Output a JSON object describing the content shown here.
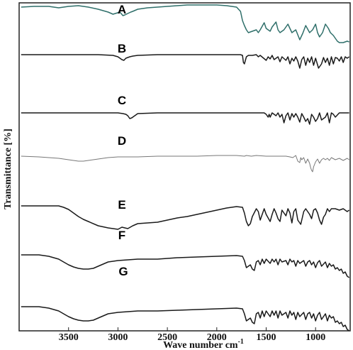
{
  "chart_data": {
    "type": "line",
    "xlabel": "Wave number cm",
    "xlabel_superscript": "-1",
    "ylabel": "Transmittance [%]",
    "x_reversed": true,
    "xlim": [
      4000,
      650
    ],
    "xticks": [
      3500,
      3000,
      2500,
      2000,
      1500,
      1000
    ],
    "yticks": [],
    "grid": false,
    "legend": "none",
    "colors": {
      "A": "#2f6f6a",
      "B": "#1a1a1a",
      "C": "#1a1a1a",
      "D": "#777777",
      "E": "#1a1a1a",
      "F": "#1a1a1a",
      "G": "#1a1a1a"
    },
    "series": [
      {
        "name": "A",
        "x": [
          3980,
          3850,
          3700,
          3600,
          3500,
          3400,
          3300,
          3200,
          3100,
          3050,
          2980,
          2950,
          2930,
          2900,
          2870,
          2850,
          2800,
          2700,
          2600,
          2500,
          2400,
          2300,
          2200,
          2100,
          2000,
          1900,
          1800,
          1760,
          1740,
          1720,
          1700,
          1680,
          1640,
          1600,
          1580,
          1560,
          1520,
          1500,
          1460,
          1440,
          1400,
          1380,
          1360,
          1320,
          1280,
          1260,
          1240,
          1200,
          1160,
          1130,
          1100,
          1060,
          1030,
          1000,
          980,
          960,
          930,
          900,
          870,
          850,
          820,
          800,
          780,
          760,
          720,
          680,
          660
        ],
        "y": [
          94,
          95,
          95,
          93,
          95,
          96,
          94,
          91,
          87,
          84,
          87,
          82,
          83,
          85,
          87,
          88,
          91,
          93,
          94,
          95,
          96,
          97,
          97,
          97,
          97,
          96,
          94,
          88,
          75,
          68,
          62,
          58,
          60,
          62,
          58,
          62,
          72,
          64,
          60,
          66,
          73,
          62,
          58,
          62,
          70,
          64,
          58,
          62,
          48,
          57,
          68,
          58,
          62,
          70,
          58,
          52,
          58,
          70,
          64,
          58,
          54,
          50,
          46,
          44,
          44,
          46,
          45
        ]
      },
      {
        "name": "B",
        "x": [
          3980,
          3800,
          3600,
          3400,
          3200,
          3050,
          3000,
          2960,
          2940,
          2920,
          2900,
          2880,
          2850,
          2800,
          2600,
          2400,
          2200,
          2000,
          1800,
          1760,
          1740,
          1730,
          1720,
          1700,
          1680,
          1640,
          1600,
          1580,
          1560,
          1500,
          1480,
          1460,
          1440,
          1420,
          1380,
          1360,
          1340,
          1300,
          1280,
          1260,
          1240,
          1220,
          1200,
          1180,
          1160,
          1140,
          1120,
          1100,
          1080,
          1060,
          1040,
          1020,
          1000,
          970,
          940,
          920,
          900,
          880,
          860,
          840,
          820,
          800,
          780,
          760,
          740,
          720,
          700,
          680,
          660
        ],
        "y": [
          83,
          83,
          83,
          83,
          83,
          82,
          80,
          76,
          75,
          78,
          79,
          80,
          81,
          82,
          83,
          83,
          83,
          83,
          83,
          83,
          82,
          72,
          70,
          80,
          82,
          82,
          83,
          80,
          82,
          75,
          80,
          77,
          82,
          76,
          80,
          73,
          80,
          75,
          80,
          70,
          78,
          74,
          80,
          74,
          64,
          76,
          80,
          68,
          78,
          72,
          80,
          68,
          78,
          64,
          70,
          79,
          72,
          78,
          68,
          80,
          70,
          79,
          78,
          74,
          80,
          72,
          80,
          78,
          80
        ]
      },
      {
        "name": "C",
        "x": [
          3980,
          3800,
          3600,
          3400,
          3200,
          3000,
          2950,
          2920,
          2900,
          2880,
          2860,
          2840,
          2800,
          2600,
          2400,
          2200,
          2000,
          1800,
          1600,
          1520,
          1500,
          1480,
          1470,
          1460,
          1440,
          1400,
          1380,
          1360,
          1340,
          1320,
          1300,
          1280,
          1260,
          1240,
          1220,
          1200,
          1180,
          1160,
          1140,
          1120,
          1100,
          1080,
          1060,
          1040,
          1020,
          1000,
          980,
          960,
          940,
          900,
          880,
          860,
          840,
          820,
          800,
          760,
          720,
          680,
          660
        ],
        "y": [
          68,
          68,
          68,
          68,
          68,
          68,
          67,
          66,
          64,
          60,
          61,
          63,
          67,
          68,
          68,
          68,
          68,
          68,
          68,
          68,
          66,
          62,
          66,
          62,
          68,
          64,
          68,
          62,
          66,
          54,
          64,
          68,
          58,
          67,
          62,
          67,
          62,
          55,
          67,
          62,
          56,
          60,
          52,
          66,
          62,
          56,
          60,
          68,
          58,
          62,
          68,
          54,
          68,
          66,
          62,
          68,
          68,
          68,
          68
        ]
      },
      {
        "name": "D",
        "x": [
          3980,
          3800,
          3600,
          3500,
          3450,
          3400,
          3350,
          3300,
          3200,
          3100,
          3000,
          2900,
          2800,
          2600,
          2400,
          2200,
          2000,
          1800,
          1720,
          1700,
          1650,
          1600,
          1500,
          1400,
          1300,
          1260,
          1230,
          1200,
          1180,
          1160,
          1150,
          1140,
          1120,
          1100,
          1080,
          1060,
          1050,
          1040,
          1030,
          1020,
          1000,
          980,
          960,
          940,
          920,
          900,
          880,
          860,
          840,
          800,
          760,
          720,
          680,
          660
        ],
        "y": [
          60,
          59,
          57,
          55,
          54,
          53,
          53,
          54,
          56,
          58,
          59,
          59,
          59,
          60,
          60,
          60,
          61,
          61,
          60,
          61,
          60,
          61,
          60,
          60,
          60,
          59,
          58,
          61,
          53,
          51,
          58,
          55,
          58,
          50,
          56,
          50,
          44,
          40,
          38,
          45,
          52,
          56,
          50,
          55,
          57,
          55,
          57,
          54,
          58,
          55,
          57,
          54,
          57,
          55
        ]
      },
      {
        "name": "E",
        "x": [
          3980,
          3700,
          3600,
          3550,
          3500,
          3450,
          3400,
          3350,
          3300,
          3200,
          3100,
          3000,
          2960,
          2900,
          2850,
          2800,
          2700,
          2600,
          2500,
          2400,
          2300,
          2200,
          2100,
          2000,
          1900,
          1800,
          1740,
          1720,
          1700,
          1680,
          1660,
          1640,
          1600,
          1580,
          1560,
          1540,
          1520,
          1500,
          1460,
          1440,
          1420,
          1400,
          1380,
          1360,
          1340,
          1300,
          1280,
          1260,
          1240,
          1220,
          1200,
          1180,
          1150,
          1120,
          1100,
          1060,
          1040,
          1020,
          1000,
          980,
          960,
          940,
          920,
          900,
          880,
          860,
          840,
          800,
          760,
          720,
          680,
          660
        ],
        "y": [
          50,
          50,
          50,
          48,
          45,
          40,
          35,
          31,
          28,
          22,
          19,
          17,
          20,
          18,
          22,
          25,
          26,
          27,
          30,
          33,
          35,
          38,
          41,
          44,
          47,
          49,
          48,
          40,
          28,
          22,
          25,
          35,
          46,
          42,
          30,
          38,
          46,
          38,
          28,
          38,
          46,
          40,
          32,
          28,
          44,
          36,
          46,
          40,
          26,
          42,
          46,
          30,
          24,
          42,
          46,
          38,
          32,
          44,
          46,
          40,
          30,
          24,
          34,
          38,
          46,
          42,
          46,
          46,
          44,
          46,
          42,
          44
        ]
      },
      {
        "name": "F",
        "x": [
          3980,
          3800,
          3700,
          3600,
          3550,
          3500,
          3450,
          3400,
          3350,
          3300,
          3250,
          3200,
          3150,
          3100,
          3000,
          2900,
          2800,
          2600,
          2400,
          2200,
          2000,
          1800,
          1740,
          1720,
          1700,
          1680,
          1660,
          1640,
          1620,
          1600,
          1580,
          1560,
          1540,
          1520,
          1500,
          1460,
          1440,
          1420,
          1400,
          1380,
          1360,
          1340,
          1300,
          1280,
          1260,
          1240,
          1220,
          1200,
          1180,
          1160,
          1120,
          1100,
          1080,
          1060,
          1040,
          1020,
          1000,
          980,
          960,
          940,
          900,
          880,
          860,
          840,
          820,
          800,
          780,
          760,
          740,
          720,
          700,
          680,
          660
        ],
        "y": [
          46,
          46,
          44,
          40,
          36,
          32,
          29,
          27,
          26,
          26,
          27,
          30,
          33,
          36,
          38,
          39,
          40,
          40,
          42,
          43,
          44,
          45,
          44,
          38,
          28,
          30,
          32,
          26,
          24,
          36,
          38,
          32,
          40,
          34,
          40,
          34,
          40,
          36,
          40,
          32,
          40,
          36,
          38,
          32,
          40,
          36,
          38,
          30,
          38,
          34,
          38,
          30,
          36,
          38,
          32,
          36,
          28,
          35,
          38,
          30,
          36,
          28,
          34,
          30,
          32,
          26,
          28,
          24,
          26,
          20,
          22,
          16,
          14
        ]
      },
      {
        "name": "G",
        "x": [
          3980,
          3800,
          3700,
          3600,
          3550,
          3500,
          3450,
          3400,
          3350,
          3300,
          3250,
          3200,
          3150,
          3100,
          3000,
          2900,
          2800,
          2600,
          2400,
          2200,
          2000,
          1800,
          1740,
          1720,
          1700,
          1680,
          1660,
          1640,
          1620,
          1600,
          1580,
          1560,
          1540,
          1520,
          1500,
          1460,
          1440,
          1420,
          1400,
          1380,
          1360,
          1340,
          1300,
          1280,
          1260,
          1240,
          1220,
          1200,
          1180,
          1160,
          1120,
          1100,
          1080,
          1060,
          1040,
          1020,
          1000,
          980,
          960,
          940,
          900,
          880,
          860,
          840,
          820,
          800,
          780,
          760,
          740,
          720,
          700,
          680,
          660
        ],
        "y": [
          38,
          38,
          36,
          32,
          28,
          24,
          21,
          19,
          18,
          18,
          19,
          22,
          25,
          28,
          30,
          31,
          32,
          32,
          33,
          34,
          35,
          36,
          35,
          28,
          18,
          20,
          22,
          16,
          14,
          28,
          30,
          22,
          32,
          24,
          32,
          24,
          32,
          26,
          32,
          22,
          32,
          26,
          30,
          22,
          32,
          26,
          30,
          20,
          30,
          24,
          30,
          20,
          28,
          30,
          22,
          28,
          18,
          26,
          30,
          20,
          28,
          18,
          26,
          22,
          24,
          16,
          18,
          14,
          16,
          10,
          12,
          6,
          4
        ]
      }
    ],
    "annotations": [
      "A",
      "B",
      "C",
      "D",
      "E",
      "F",
      "G"
    ]
  }
}
